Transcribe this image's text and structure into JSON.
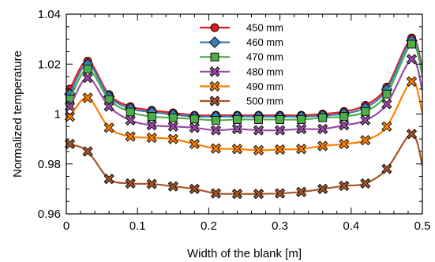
{
  "chart_data": {
    "type": "line",
    "xlabel": "Width of the blank [m]",
    "ylabel": "Normalized temperature",
    "xlim": [
      0,
      0.5
    ],
    "ylim": [
      0.96,
      1.04
    ],
    "xticks": [
      0,
      0.1,
      0.2,
      0.3,
      0.4,
      0.5
    ],
    "xtick_labels": [
      "0",
      "0.1",
      "0.2",
      "0.3",
      "0.4",
      "0.5"
    ],
    "yticks": [
      0.96,
      0.98,
      1.0,
      1.02,
      1.04
    ],
    "ytick_labels": [
      "0.96",
      "0.98",
      "1",
      "1.02",
      "1.04"
    ],
    "grid": false,
    "legend_position": "top-center",
    "x": [
      0.005,
      0.03,
      0.06,
      0.09,
      0.12,
      0.15,
      0.18,
      0.21,
      0.24,
      0.27,
      0.3,
      0.33,
      0.36,
      0.39,
      0.42,
      0.45,
      0.485
    ],
    "series": [
      {
        "name": "450 mm",
        "color": "#e41a1c",
        "marker": "circle",
        "values": [
          1.01,
          1.0212,
          1.0078,
          1.003,
          1.0015,
          1.0005,
          0.9995,
          0.9995,
          0.9995,
          0.9995,
          0.9995,
          0.9995,
          1.0,
          1.001,
          1.0035,
          1.0108,
          1.0305
        ]
      },
      {
        "name": "460 mm",
        "color": "#377eb8",
        "marker": "diamond",
        "values": [
          1.008,
          1.02,
          1.007,
          1.0022,
          1.0008,
          0.9998,
          0.999,
          0.999,
          0.999,
          0.999,
          0.999,
          0.999,
          0.9993,
          1.0002,
          1.0025,
          1.0098,
          1.0295
        ]
      },
      {
        "name": "470 mm",
        "color": "#4daf4a",
        "marker": "square",
        "values": [
          1.006,
          1.018,
          1.0058,
          1.0008,
          0.999,
          0.9985,
          0.998,
          0.9975,
          0.9978,
          0.9978,
          0.9978,
          0.9978,
          0.9985,
          0.999,
          1.001,
          1.008,
          1.028
        ]
      },
      {
        "name": "480 mm",
        "color": "#984ea3",
        "marker": "x",
        "values": [
          1.003,
          1.0145,
          1.003,
          0.9975,
          0.9955,
          0.995,
          0.9945,
          0.9935,
          0.994,
          0.9935,
          0.9935,
          0.994,
          0.994,
          0.9955,
          0.9975,
          1.004,
          1.022
        ]
      },
      {
        "name": "490 mm",
        "color": "#ff7f00",
        "marker": "x",
        "values": [
          0.999,
          1.0065,
          0.9945,
          0.991,
          0.9905,
          0.99,
          0.988,
          0.9862,
          0.986,
          0.9855,
          0.9858,
          0.986,
          0.9872,
          0.988,
          0.9895,
          0.995,
          1.013
        ]
      },
      {
        "name": "500 mm",
        "color": "#a65628",
        "marker": "x",
        "values": [
          0.988,
          0.985,
          0.974,
          0.9722,
          0.972,
          0.971,
          0.97,
          0.9682,
          0.968,
          0.968,
          0.9682,
          0.9688,
          0.97,
          0.9712,
          0.9722,
          0.978,
          0.992
        ]
      }
    ]
  }
}
